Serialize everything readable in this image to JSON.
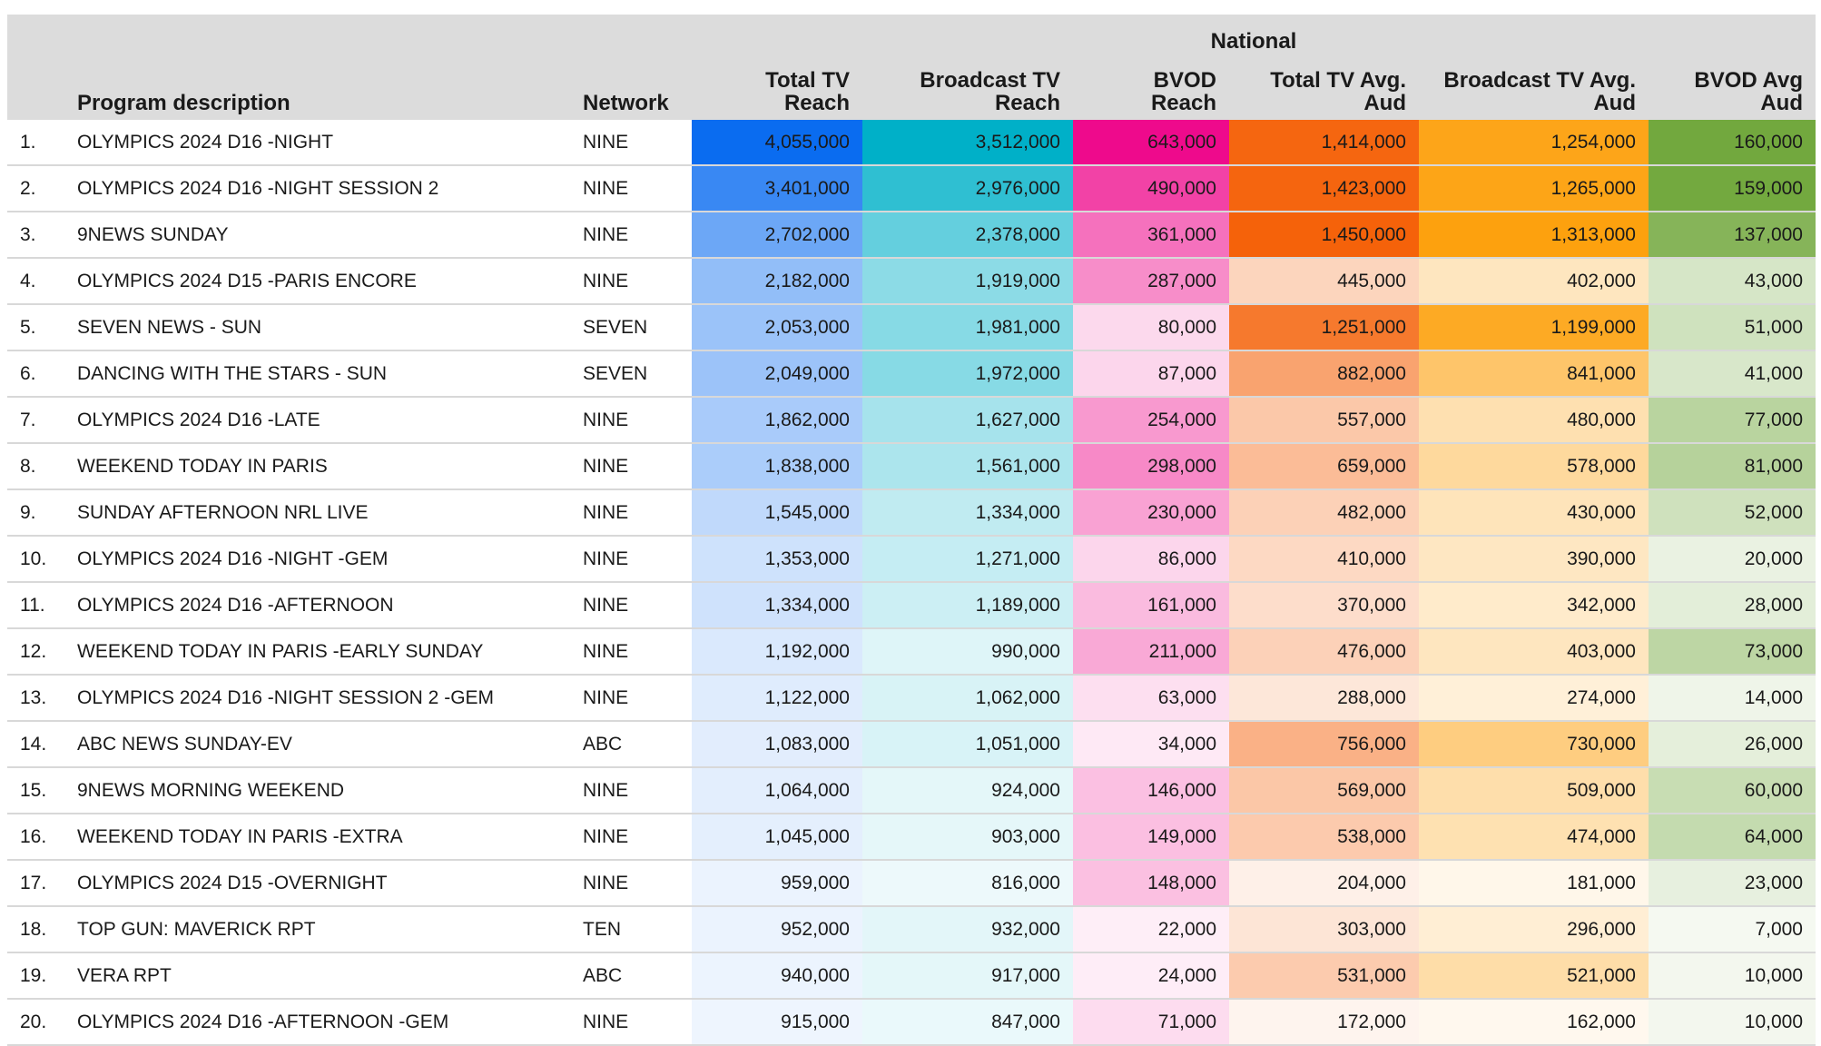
{
  "chart_data": {
    "type": "table",
    "header_group": "National",
    "columns": [
      "Program description",
      "Network",
      "Total TV Reach",
      "Broadcast TV Reach",
      "BVOD Reach",
      "Total TV Avg. Aud",
      "Broadcast TV Avg. Aud",
      "BVOD Avg Aud"
    ],
    "rows": [
      {
        "rank": "1.",
        "program": "OLYMPICS 2024 D16 -NIGHT",
        "network": "NINE",
        "total_tv_reach": 4055000,
        "broadcast_tv_reach": 3512000,
        "bvod_reach": 643000,
        "total_tv_avg_aud": 1414000,
        "broadcast_tv_avg_aud": 1254000,
        "bvod_avg_aud": 160000
      },
      {
        "rank": "2.",
        "program": "OLYMPICS 2024 D16 -NIGHT SESSION 2",
        "network": "NINE",
        "total_tv_reach": 3401000,
        "broadcast_tv_reach": 2976000,
        "bvod_reach": 490000,
        "total_tv_avg_aud": 1423000,
        "broadcast_tv_avg_aud": 1265000,
        "bvod_avg_aud": 159000
      },
      {
        "rank": "3.",
        "program": "9NEWS SUNDAY",
        "network": "NINE",
        "total_tv_reach": 2702000,
        "broadcast_tv_reach": 2378000,
        "bvod_reach": 361000,
        "total_tv_avg_aud": 1450000,
        "broadcast_tv_avg_aud": 1313000,
        "bvod_avg_aud": 137000
      },
      {
        "rank": "4.",
        "program": "OLYMPICS 2024 D15 -PARIS ENCORE",
        "network": "NINE",
        "total_tv_reach": 2182000,
        "broadcast_tv_reach": 1919000,
        "bvod_reach": 287000,
        "total_tv_avg_aud": 445000,
        "broadcast_tv_avg_aud": 402000,
        "bvod_avg_aud": 43000
      },
      {
        "rank": "5.",
        "program": "SEVEN NEWS - SUN",
        "network": "SEVEN",
        "total_tv_reach": 2053000,
        "broadcast_tv_reach": 1981000,
        "bvod_reach": 80000,
        "total_tv_avg_aud": 1251000,
        "broadcast_tv_avg_aud": 1199000,
        "bvod_avg_aud": 51000
      },
      {
        "rank": "6.",
        "program": "DANCING WITH THE STARS - SUN",
        "network": "SEVEN",
        "total_tv_reach": 2049000,
        "broadcast_tv_reach": 1972000,
        "bvod_reach": 87000,
        "total_tv_avg_aud": 882000,
        "broadcast_tv_avg_aud": 841000,
        "bvod_avg_aud": 41000
      },
      {
        "rank": "7.",
        "program": "OLYMPICS 2024 D16 -LATE",
        "network": "NINE",
        "total_tv_reach": 1862000,
        "broadcast_tv_reach": 1627000,
        "bvod_reach": 254000,
        "total_tv_avg_aud": 557000,
        "broadcast_tv_avg_aud": 480000,
        "bvod_avg_aud": 77000
      },
      {
        "rank": "8.",
        "program": "WEEKEND TODAY IN PARIS",
        "network": "NINE",
        "total_tv_reach": 1838000,
        "broadcast_tv_reach": 1561000,
        "bvod_reach": 298000,
        "total_tv_avg_aud": 659000,
        "broadcast_tv_avg_aud": 578000,
        "bvod_avg_aud": 81000
      },
      {
        "rank": "9.",
        "program": "SUNDAY AFTERNOON NRL LIVE",
        "network": "NINE",
        "total_tv_reach": 1545000,
        "broadcast_tv_reach": 1334000,
        "bvod_reach": 230000,
        "total_tv_avg_aud": 482000,
        "broadcast_tv_avg_aud": 430000,
        "bvod_avg_aud": 52000
      },
      {
        "rank": "10.",
        "program": "OLYMPICS 2024 D16 -NIGHT -GEM",
        "network": "NINE",
        "total_tv_reach": 1353000,
        "broadcast_tv_reach": 1271000,
        "bvod_reach": 86000,
        "total_tv_avg_aud": 410000,
        "broadcast_tv_avg_aud": 390000,
        "bvod_avg_aud": 20000
      },
      {
        "rank": "11.",
        "program": "OLYMPICS 2024 D16 -AFTERNOON",
        "network": "NINE",
        "total_tv_reach": 1334000,
        "broadcast_tv_reach": 1189000,
        "bvod_reach": 161000,
        "total_tv_avg_aud": 370000,
        "broadcast_tv_avg_aud": 342000,
        "bvod_avg_aud": 28000
      },
      {
        "rank": "12.",
        "program": "WEEKEND TODAY IN PARIS -EARLY SUNDAY",
        "network": "NINE",
        "total_tv_reach": 1192000,
        "broadcast_tv_reach": 990000,
        "bvod_reach": 211000,
        "total_tv_avg_aud": 476000,
        "broadcast_tv_avg_aud": 403000,
        "bvod_avg_aud": 73000
      },
      {
        "rank": "13.",
        "program": "OLYMPICS 2024 D16 -NIGHT SESSION 2 -GEM",
        "network": "NINE",
        "total_tv_reach": 1122000,
        "broadcast_tv_reach": 1062000,
        "bvod_reach": 63000,
        "total_tv_avg_aud": 288000,
        "broadcast_tv_avg_aud": 274000,
        "bvod_avg_aud": 14000
      },
      {
        "rank": "14.",
        "program": "ABC NEWS SUNDAY-EV",
        "network": "ABC",
        "total_tv_reach": 1083000,
        "broadcast_tv_reach": 1051000,
        "bvod_reach": 34000,
        "total_tv_avg_aud": 756000,
        "broadcast_tv_avg_aud": 730000,
        "bvod_avg_aud": 26000
      },
      {
        "rank": "15.",
        "program": "9NEWS MORNING WEEKEND",
        "network": "NINE",
        "total_tv_reach": 1064000,
        "broadcast_tv_reach": 924000,
        "bvod_reach": 146000,
        "total_tv_avg_aud": 569000,
        "broadcast_tv_avg_aud": 509000,
        "bvod_avg_aud": 60000
      },
      {
        "rank": "16.",
        "program": "WEEKEND TODAY IN PARIS -EXTRA",
        "network": "NINE",
        "total_tv_reach": 1045000,
        "broadcast_tv_reach": 903000,
        "bvod_reach": 149000,
        "total_tv_avg_aud": 538000,
        "broadcast_tv_avg_aud": 474000,
        "bvod_avg_aud": 64000
      },
      {
        "rank": "17.",
        "program": "OLYMPICS 2024 D15 -OVERNIGHT",
        "network": "NINE",
        "total_tv_reach": 959000,
        "broadcast_tv_reach": 816000,
        "bvod_reach": 148000,
        "total_tv_avg_aud": 204000,
        "broadcast_tv_avg_aud": 181000,
        "bvod_avg_aud": 23000
      },
      {
        "rank": "18.",
        "program": "TOP GUN: MAVERICK RPT",
        "network": "TEN",
        "total_tv_reach": 952000,
        "broadcast_tv_reach": 932000,
        "bvod_reach": 22000,
        "total_tv_avg_aud": 303000,
        "broadcast_tv_avg_aud": 296000,
        "bvod_avg_aud": 7000
      },
      {
        "rank": "19.",
        "program": "VERA RPT",
        "network": "ABC",
        "total_tv_reach": 940000,
        "broadcast_tv_reach": 917000,
        "bvod_reach": 24000,
        "total_tv_avg_aud": 531000,
        "broadcast_tv_avg_aud": 521000,
        "bvod_avg_aud": 10000
      },
      {
        "rank": "20.",
        "program": "OLYMPICS 2024 D16 -AFTERNOON -GEM",
        "network": "NINE",
        "total_tv_reach": 915000,
        "broadcast_tv_reach": 847000,
        "bvod_reach": 71000,
        "total_tv_avg_aud": 172000,
        "broadcast_tv_avg_aud": 162000,
        "bvod_avg_aud": 10000
      }
    ],
    "column_colors": {
      "total_tv_reach": "#0a6cf0",
      "broadcast_tv_reach": "#00b0c8",
      "bvod_reach": "#ee0a8c",
      "total_tv_avg_aud": "#f5620a",
      "broadcast_tv_avg_aud": "#fda10e",
      "bvod_avg_aud": "#72a83e"
    }
  }
}
